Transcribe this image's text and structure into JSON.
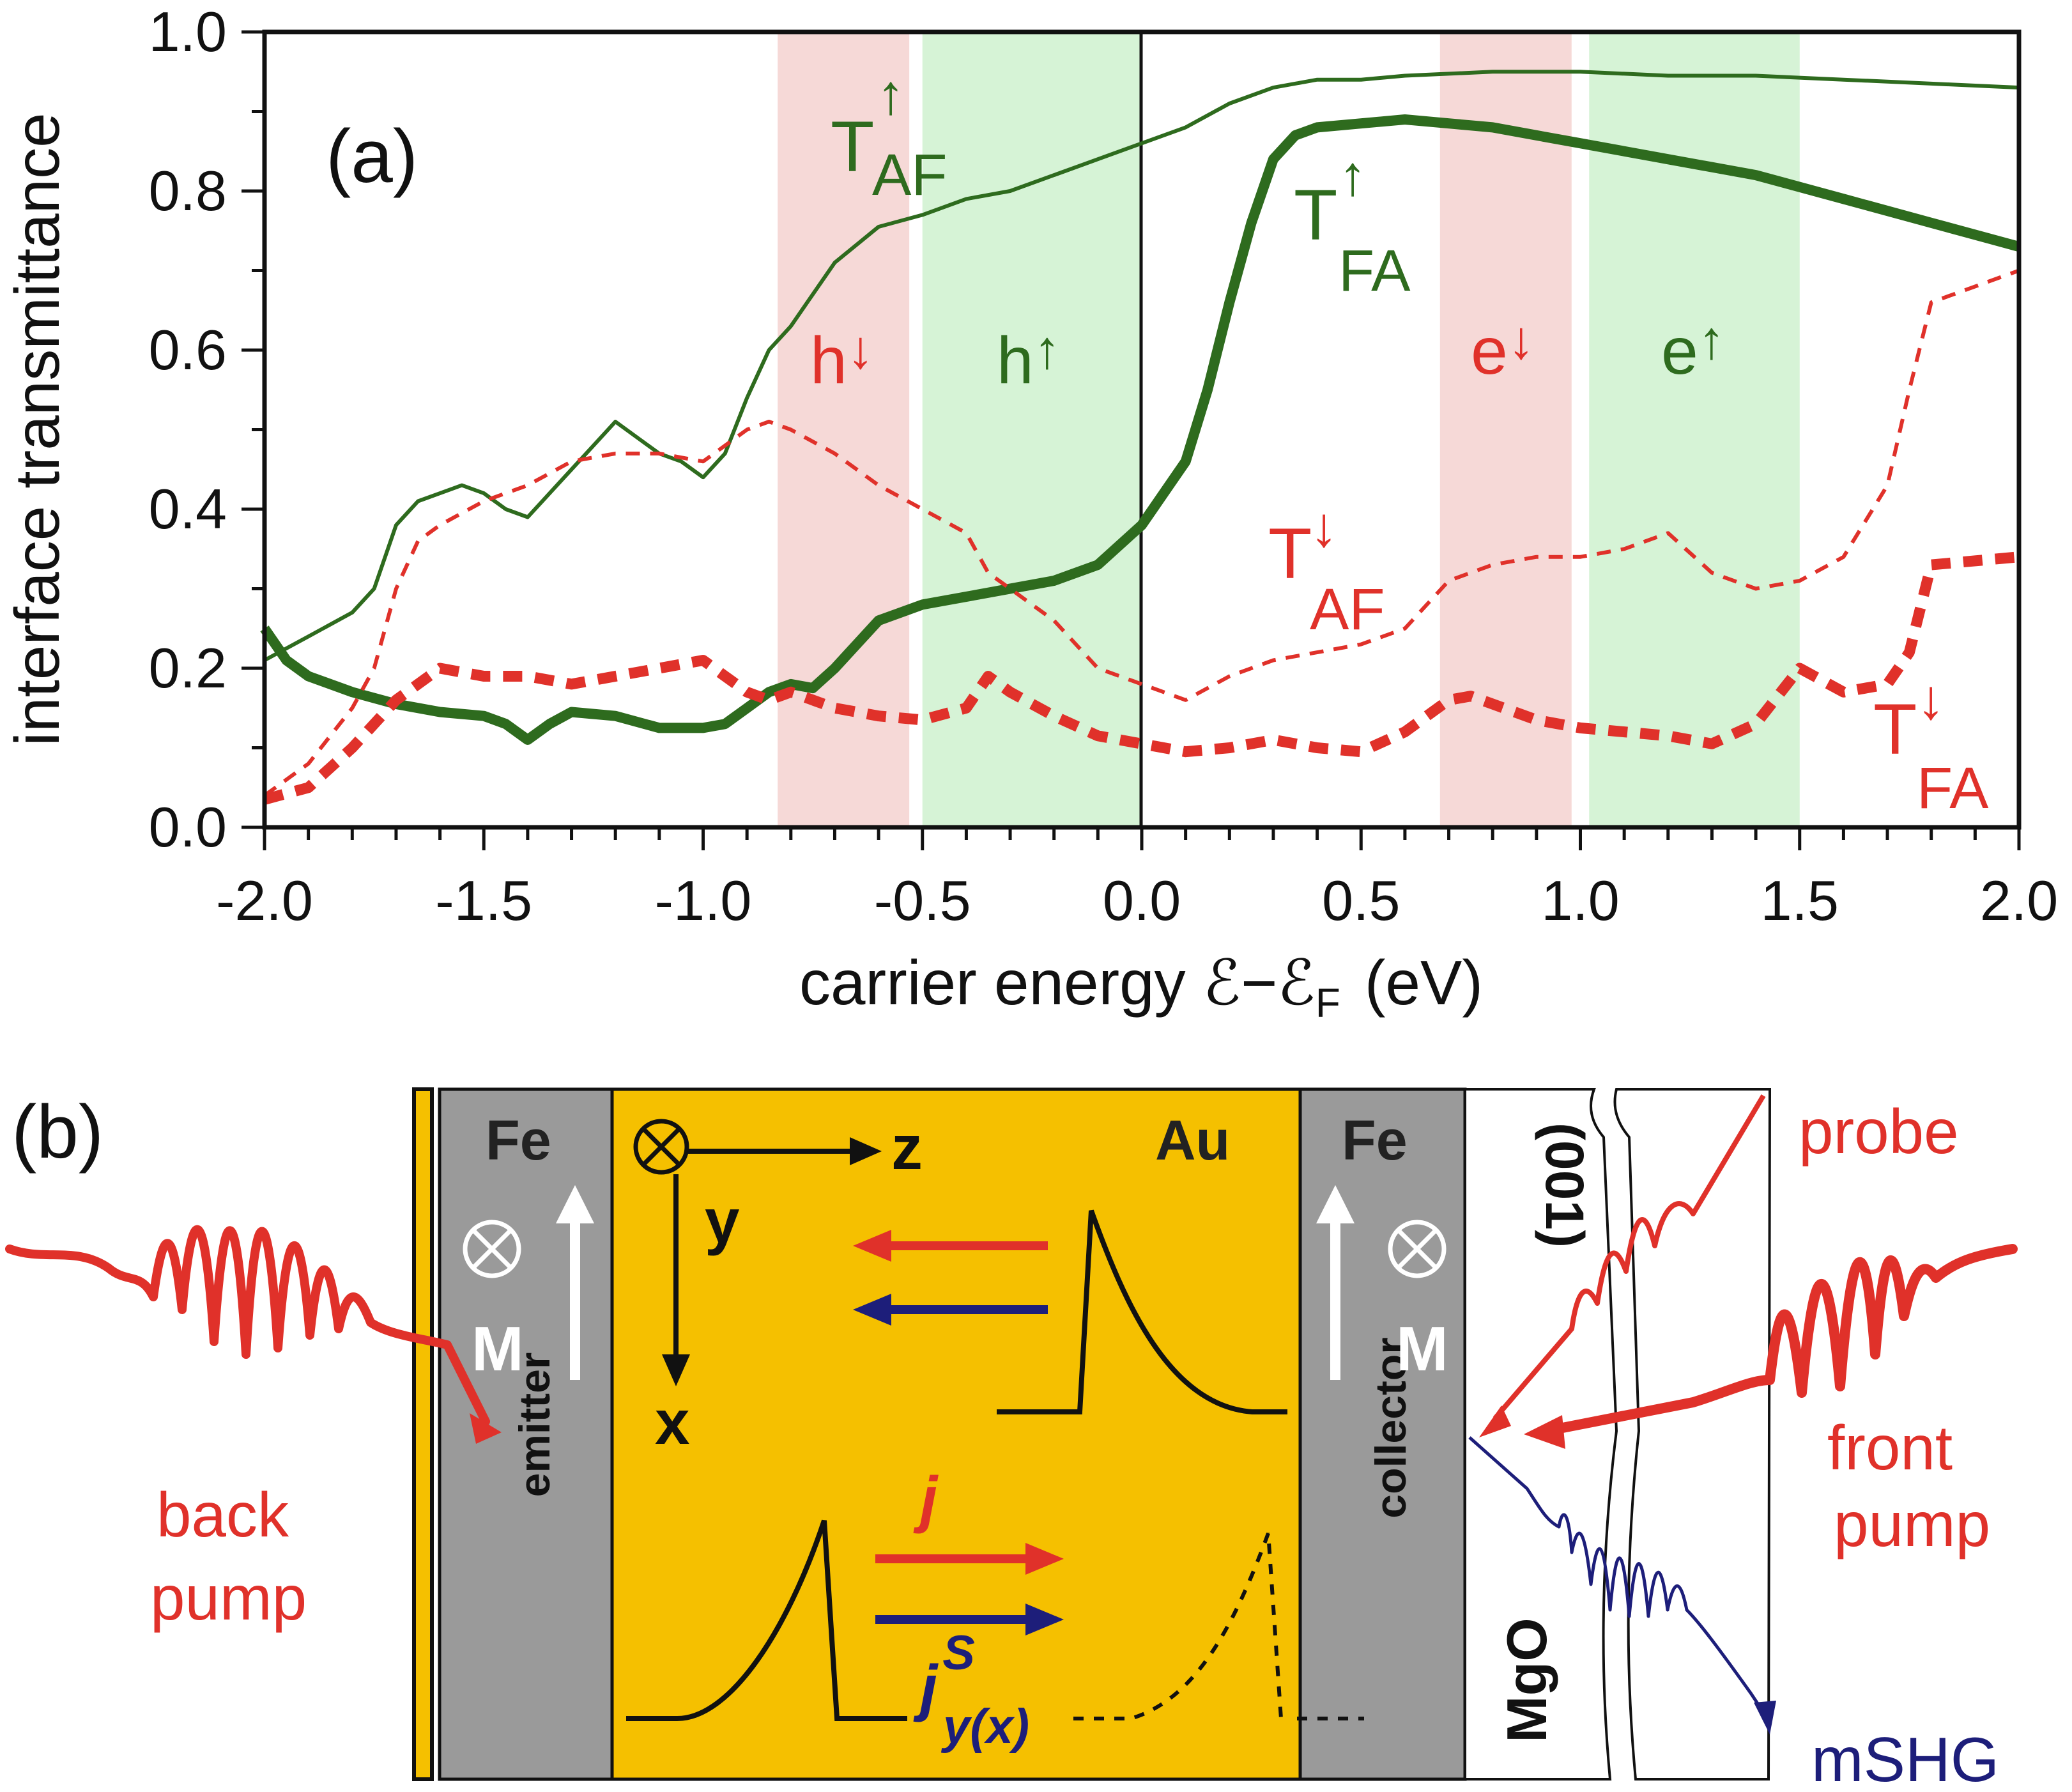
{
  "chart_data": {
    "type": "line",
    "panel_label": "(a)",
    "xlabel": "carrier energy ℰ−ℰ",
    "xlabel_sub": "F",
    "xlabel_unit": "(eV)",
    "ylabel": "interface transmittance",
    "xlim": [
      -2.0,
      2.0
    ],
    "ylim": [
      0.0,
      1.0
    ],
    "x_ticks": [
      "-2.0",
      "-1.5",
      "-1.0",
      "-0.5",
      "0.0",
      "0.5",
      "1.0",
      "1.5",
      "2.0"
    ],
    "y_ticks": [
      "0.0",
      "0.2",
      "0.4",
      "0.6",
      "0.8",
      "1.0"
    ],
    "bands": [
      {
        "label": "h",
        "spin": "↓",
        "x0": -0.83,
        "x1": -0.53,
        "color": "#f6d9d7"
      },
      {
        "label": "h",
        "spin": "↑",
        "x0": -0.5,
        "x1": 0.0,
        "color": "#d6f3d6"
      },
      {
        "label": "e",
        "spin": "↓",
        "x0": 0.68,
        "x1": 0.98,
        "color": "#f6d9d7"
      },
      {
        "label": "e",
        "spin": "↑",
        "x0": 1.02,
        "x1": 1.5,
        "color": "#d6f3d6"
      }
    ],
    "series": [
      {
        "name": "T_AF up",
        "label": "T",
        "sup": "↑",
        "sub": "AF",
        "color": "#2e6b1e",
        "style": "solid-thin",
        "x": [
          -2.0,
          -1.9,
          -1.8,
          -1.75,
          -1.7,
          -1.65,
          -1.6,
          -1.55,
          -1.5,
          -1.45,
          -1.4,
          -1.35,
          -1.3,
          -1.25,
          -1.2,
          -1.15,
          -1.1,
          -1.05,
          -1.0,
          -0.95,
          -0.9,
          -0.85,
          -0.8,
          -0.75,
          -0.7,
          -0.6,
          -0.5,
          -0.4,
          -0.3,
          -0.2,
          -0.1,
          0.0,
          0.1,
          0.2,
          0.3,
          0.4,
          0.5,
          0.6,
          0.8,
          1.0,
          1.2,
          1.4,
          1.6,
          1.8,
          2.0
        ],
        "y": [
          0.21,
          0.24,
          0.27,
          0.3,
          0.38,
          0.41,
          0.42,
          0.43,
          0.42,
          0.4,
          0.39,
          0.42,
          0.45,
          0.48,
          0.51,
          0.49,
          0.47,
          0.46,
          0.44,
          0.47,
          0.54,
          0.6,
          0.63,
          0.67,
          0.71,
          0.755,
          0.77,
          0.79,
          0.8,
          0.82,
          0.84,
          0.86,
          0.88,
          0.91,
          0.93,
          0.94,
          0.94,
          0.945,
          0.95,
          0.95,
          0.945,
          0.945,
          0.94,
          0.935,
          0.93
        ]
      },
      {
        "name": "T_FA up",
        "label": "T",
        "sup": "↑",
        "sub": "FA",
        "color": "#2e6b1e",
        "style": "solid-thick",
        "x": [
          -2.0,
          -1.95,
          -1.9,
          -1.8,
          -1.7,
          -1.6,
          -1.5,
          -1.45,
          -1.4,
          -1.35,
          -1.3,
          -1.2,
          -1.1,
          -1.0,
          -0.95,
          -0.9,
          -0.85,
          -0.8,
          -0.75,
          -0.7,
          -0.65,
          -0.6,
          -0.5,
          -0.4,
          -0.3,
          -0.2,
          -0.1,
          0.0,
          0.1,
          0.15,
          0.2,
          0.25,
          0.3,
          0.35,
          0.4,
          0.5,
          0.6,
          0.7,
          0.8,
          1.0,
          1.2,
          1.4,
          1.6,
          1.8,
          2.0
        ],
        "y": [
          0.25,
          0.21,
          0.19,
          0.17,
          0.155,
          0.145,
          0.14,
          0.13,
          0.11,
          0.13,
          0.145,
          0.14,
          0.125,
          0.125,
          0.13,
          0.15,
          0.17,
          0.18,
          0.175,
          0.2,
          0.23,
          0.26,
          0.28,
          0.29,
          0.3,
          0.31,
          0.33,
          0.38,
          0.46,
          0.55,
          0.66,
          0.76,
          0.84,
          0.87,
          0.88,
          0.885,
          0.89,
          0.885,
          0.88,
          0.86,
          0.84,
          0.82,
          0.79,
          0.76,
          0.73
        ]
      },
      {
        "name": "T_AF down",
        "label": "T",
        "sup": "↓",
        "sub": "AF",
        "color": "#e0312a",
        "style": "dashed-thin",
        "x": [
          -2.0,
          -1.9,
          -1.8,
          -1.75,
          -1.7,
          -1.65,
          -1.6,
          -1.5,
          -1.4,
          -1.3,
          -1.2,
          -1.1,
          -1.0,
          -0.9,
          -0.85,
          -0.8,
          -0.7,
          -0.6,
          -0.5,
          -0.4,
          -0.35,
          -0.3,
          -0.2,
          -0.1,
          0.0,
          0.1,
          0.2,
          0.3,
          0.4,
          0.5,
          0.6,
          0.65,
          0.7,
          0.8,
          0.9,
          1.0,
          1.1,
          1.2,
          1.3,
          1.4,
          1.5,
          1.6,
          1.7,
          1.75,
          1.8,
          1.9,
          2.0
        ],
        "y": [
          0.04,
          0.08,
          0.15,
          0.2,
          0.3,
          0.36,
          0.38,
          0.41,
          0.43,
          0.46,
          0.47,
          0.47,
          0.46,
          0.5,
          0.51,
          0.5,
          0.47,
          0.43,
          0.4,
          0.37,
          0.32,
          0.3,
          0.26,
          0.2,
          0.18,
          0.16,
          0.19,
          0.21,
          0.22,
          0.23,
          0.25,
          0.28,
          0.31,
          0.33,
          0.34,
          0.34,
          0.35,
          0.37,
          0.32,
          0.3,
          0.31,
          0.34,
          0.43,
          0.55,
          0.66,
          0.68,
          0.7
        ]
      },
      {
        "name": "T_FA down",
        "label": "T",
        "sup": "↓",
        "sub": "FA",
        "color": "#e0312a",
        "style": "dashed-thick",
        "x": [
          -2.0,
          -1.9,
          -1.8,
          -1.7,
          -1.6,
          -1.5,
          -1.4,
          -1.3,
          -1.2,
          -1.1,
          -1.0,
          -0.95,
          -0.9,
          -0.85,
          -0.8,
          -0.7,
          -0.6,
          -0.5,
          -0.4,
          -0.35,
          -0.3,
          -0.2,
          -0.1,
          0.0,
          0.1,
          0.2,
          0.3,
          0.4,
          0.5,
          0.6,
          0.7,
          0.75,
          0.8,
          0.9,
          1.0,
          1.1,
          1.2,
          1.3,
          1.4,
          1.5,
          1.6,
          1.7,
          1.75,
          1.8,
          1.9,
          2.0
        ],
        "y": [
          0.035,
          0.05,
          0.1,
          0.16,
          0.2,
          0.19,
          0.19,
          0.18,
          0.19,
          0.2,
          0.21,
          0.19,
          0.17,
          0.16,
          0.17,
          0.15,
          0.14,
          0.135,
          0.15,
          0.19,
          0.17,
          0.14,
          0.115,
          0.105,
          0.095,
          0.1,
          0.11,
          0.1,
          0.095,
          0.12,
          0.16,
          0.165,
          0.155,
          0.135,
          0.125,
          0.12,
          0.115,
          0.105,
          0.13,
          0.2,
          0.17,
          0.18,
          0.22,
          0.33,
          0.335,
          0.34
        ]
      }
    ]
  },
  "panel_b": {
    "label": "(b)",
    "back_pump": [
      "back",
      "pump"
    ],
    "front_pump": [
      "front",
      "pump"
    ],
    "probe": "probe",
    "mshg": "mSHG",
    "fe_left": "Fe",
    "fe_right": "Fe",
    "au": "Au",
    "magnetization": "M",
    "emitter": "emitter",
    "collector": "collector",
    "mgo": "MgO",
    "orientation": "(001)",
    "axis_z": "z",
    "axis_y": "y",
    "axis_x": "x",
    "current_j": "j",
    "spin_current": "j",
    "spin_current_sup": "S",
    "spin_current_sub": "y(x)",
    "colors": {
      "gold": "#f5c000",
      "iron": "#9a9a9a",
      "red": "#e0312a",
      "navy": "#1d1e7a",
      "green": "#2e6b1e"
    }
  }
}
